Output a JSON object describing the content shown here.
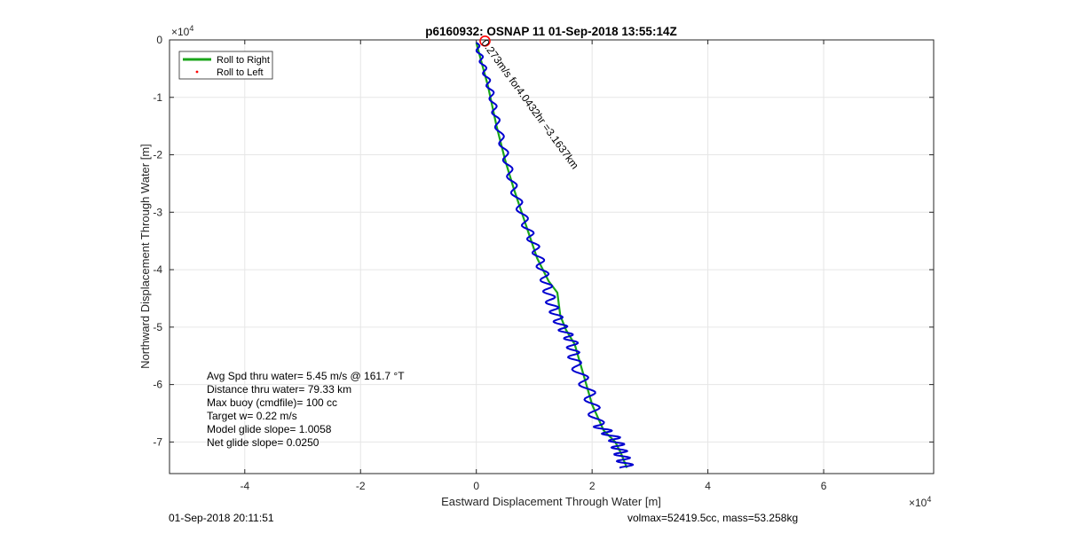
{
  "chart_data": {
    "type": "line",
    "title": "p6160932: OSNAP 11 01-Sep-2018 13:55:14Z",
    "xlabel": "Eastward Displacement Through Water [m]",
    "ylabel": "Northward Displacement Through Water [m]",
    "x_multiplier": "×10",
    "x_multiplier_exp": "4",
    "y_multiplier": "×10",
    "y_multiplier_exp": "4",
    "xlim": [
      -5.3,
      7.9
    ],
    "ylim": [
      -7.55,
      0
    ],
    "xticks": [
      -4,
      -2,
      0,
      2,
      4,
      6
    ],
    "xtick_labels": [
      "-4",
      "-2",
      "0",
      "2",
      "4",
      "6"
    ],
    "yticks": [
      0,
      -1,
      -2,
      -3,
      -4,
      -5,
      -6,
      -7
    ],
    "ytick_labels": [
      "0",
      "-1",
      "-2",
      "-3",
      "-4",
      "-5",
      "-6",
      "-7"
    ],
    "grid": true,
    "legend_position": "top-left",
    "series": [
      {
        "name": "Roll to Right",
        "color": "#1aa51a",
        "x": [
          0,
          0.12,
          0.2,
          0.35,
          0.5,
          0.65,
          0.85,
          1.05,
          1.25,
          1.4,
          1.45,
          1.55,
          1.7,
          2.0,
          2.2,
          2.4,
          2.5,
          2.6
        ],
        "y": [
          -0.05,
          -0.5,
          -0.8,
          -1.5,
          -2.1,
          -2.6,
          -3.2,
          -3.8,
          -4.2,
          -4.4,
          -4.8,
          -5.05,
          -5.3,
          -6.35,
          -6.8,
          -7.0,
          -7.2,
          -7.45
        ]
      },
      {
        "name": "Roll to Left",
        "color": "#ff0000",
        "x": [],
        "y": []
      },
      {
        "name": "",
        "color": "#0000d0",
        "x": [
          0,
          0.12,
          0.25,
          0.35,
          0.5,
          0.65,
          0.85,
          1.05,
          1.2,
          1.3,
          1.45,
          1.65,
          1.7,
          1.95,
          2.1,
          2.4,
          2.5,
          2.6
        ],
        "y": [
          -0.05,
          -0.45,
          -0.9,
          -1.4,
          -2.0,
          -2.6,
          -3.2,
          -3.7,
          -4.2,
          -4.6,
          -4.95,
          -5.25,
          -5.6,
          -6.15,
          -6.7,
          -6.95,
          -7.2,
          -7.45
        ]
      }
    ],
    "start_marker": {
      "x": 0.15,
      "y": -0.02,
      "color": "#ff0000"
    },
    "annotation": {
      "text": "0.273m/s for4.0432hr =3.1637km",
      "x": 0.08,
      "y": -0.05,
      "angle_deg": 54
    },
    "stats": [
      "Avg Spd thru water=  5.45 m/s @ 161.7 °T",
      "Distance thru water= 79.33 km",
      "Max buoy (cmdfile)= 100 cc",
      "Target w= 0.22 m/s",
      "Model glide slope= 1.0058",
      "Net glide slope= 0.0250"
    ],
    "footer_left": "01-Sep-2018 20:11:51",
    "footer_right": "volmax=52419.5cc, mass=53.258kg"
  }
}
